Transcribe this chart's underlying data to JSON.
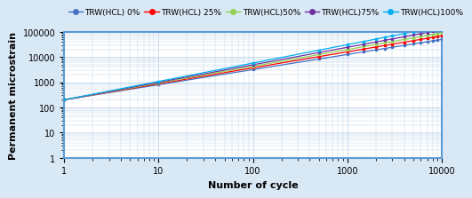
{
  "series": [
    {
      "label": "TRW(HCL) 0%",
      "color": "#4472C4",
      "a": 200,
      "b": 0.6
    },
    {
      "label": "TRW(HCL) 25%",
      "color": "#FF0000",
      "a": 200,
      "b": 0.635
    },
    {
      "label": "TRW(HCL)50%",
      "color": "#92D050",
      "a": 200,
      "b": 0.665
    },
    {
      "label": "TRW(HCL)75%",
      "color": "#7030A0",
      "a": 200,
      "b": 0.695
    },
    {
      "label": "TRW(HCL)100%",
      "color": "#00B0F0",
      "a": 200,
      "b": 0.73
    }
  ],
  "x_points": [
    1,
    10,
    100,
    500,
    1000,
    1500,
    2000,
    2500,
    3000,
    4000,
    5000,
    6000,
    7000,
    8000,
    9000,
    10000
  ],
  "xlim": [
    1,
    10000
  ],
  "ylim": [
    1,
    100000
  ],
  "xlabel": "Number of cycle",
  "ylabel": "Permanent microstrain",
  "background_color": "#D9E8F5",
  "plot_bg_color": "#FFFFFF",
  "grid_color": "#B8D0E8",
  "legend_fontsize": 6.5,
  "axis_fontsize": 8,
  "tick_fontsize": 7
}
